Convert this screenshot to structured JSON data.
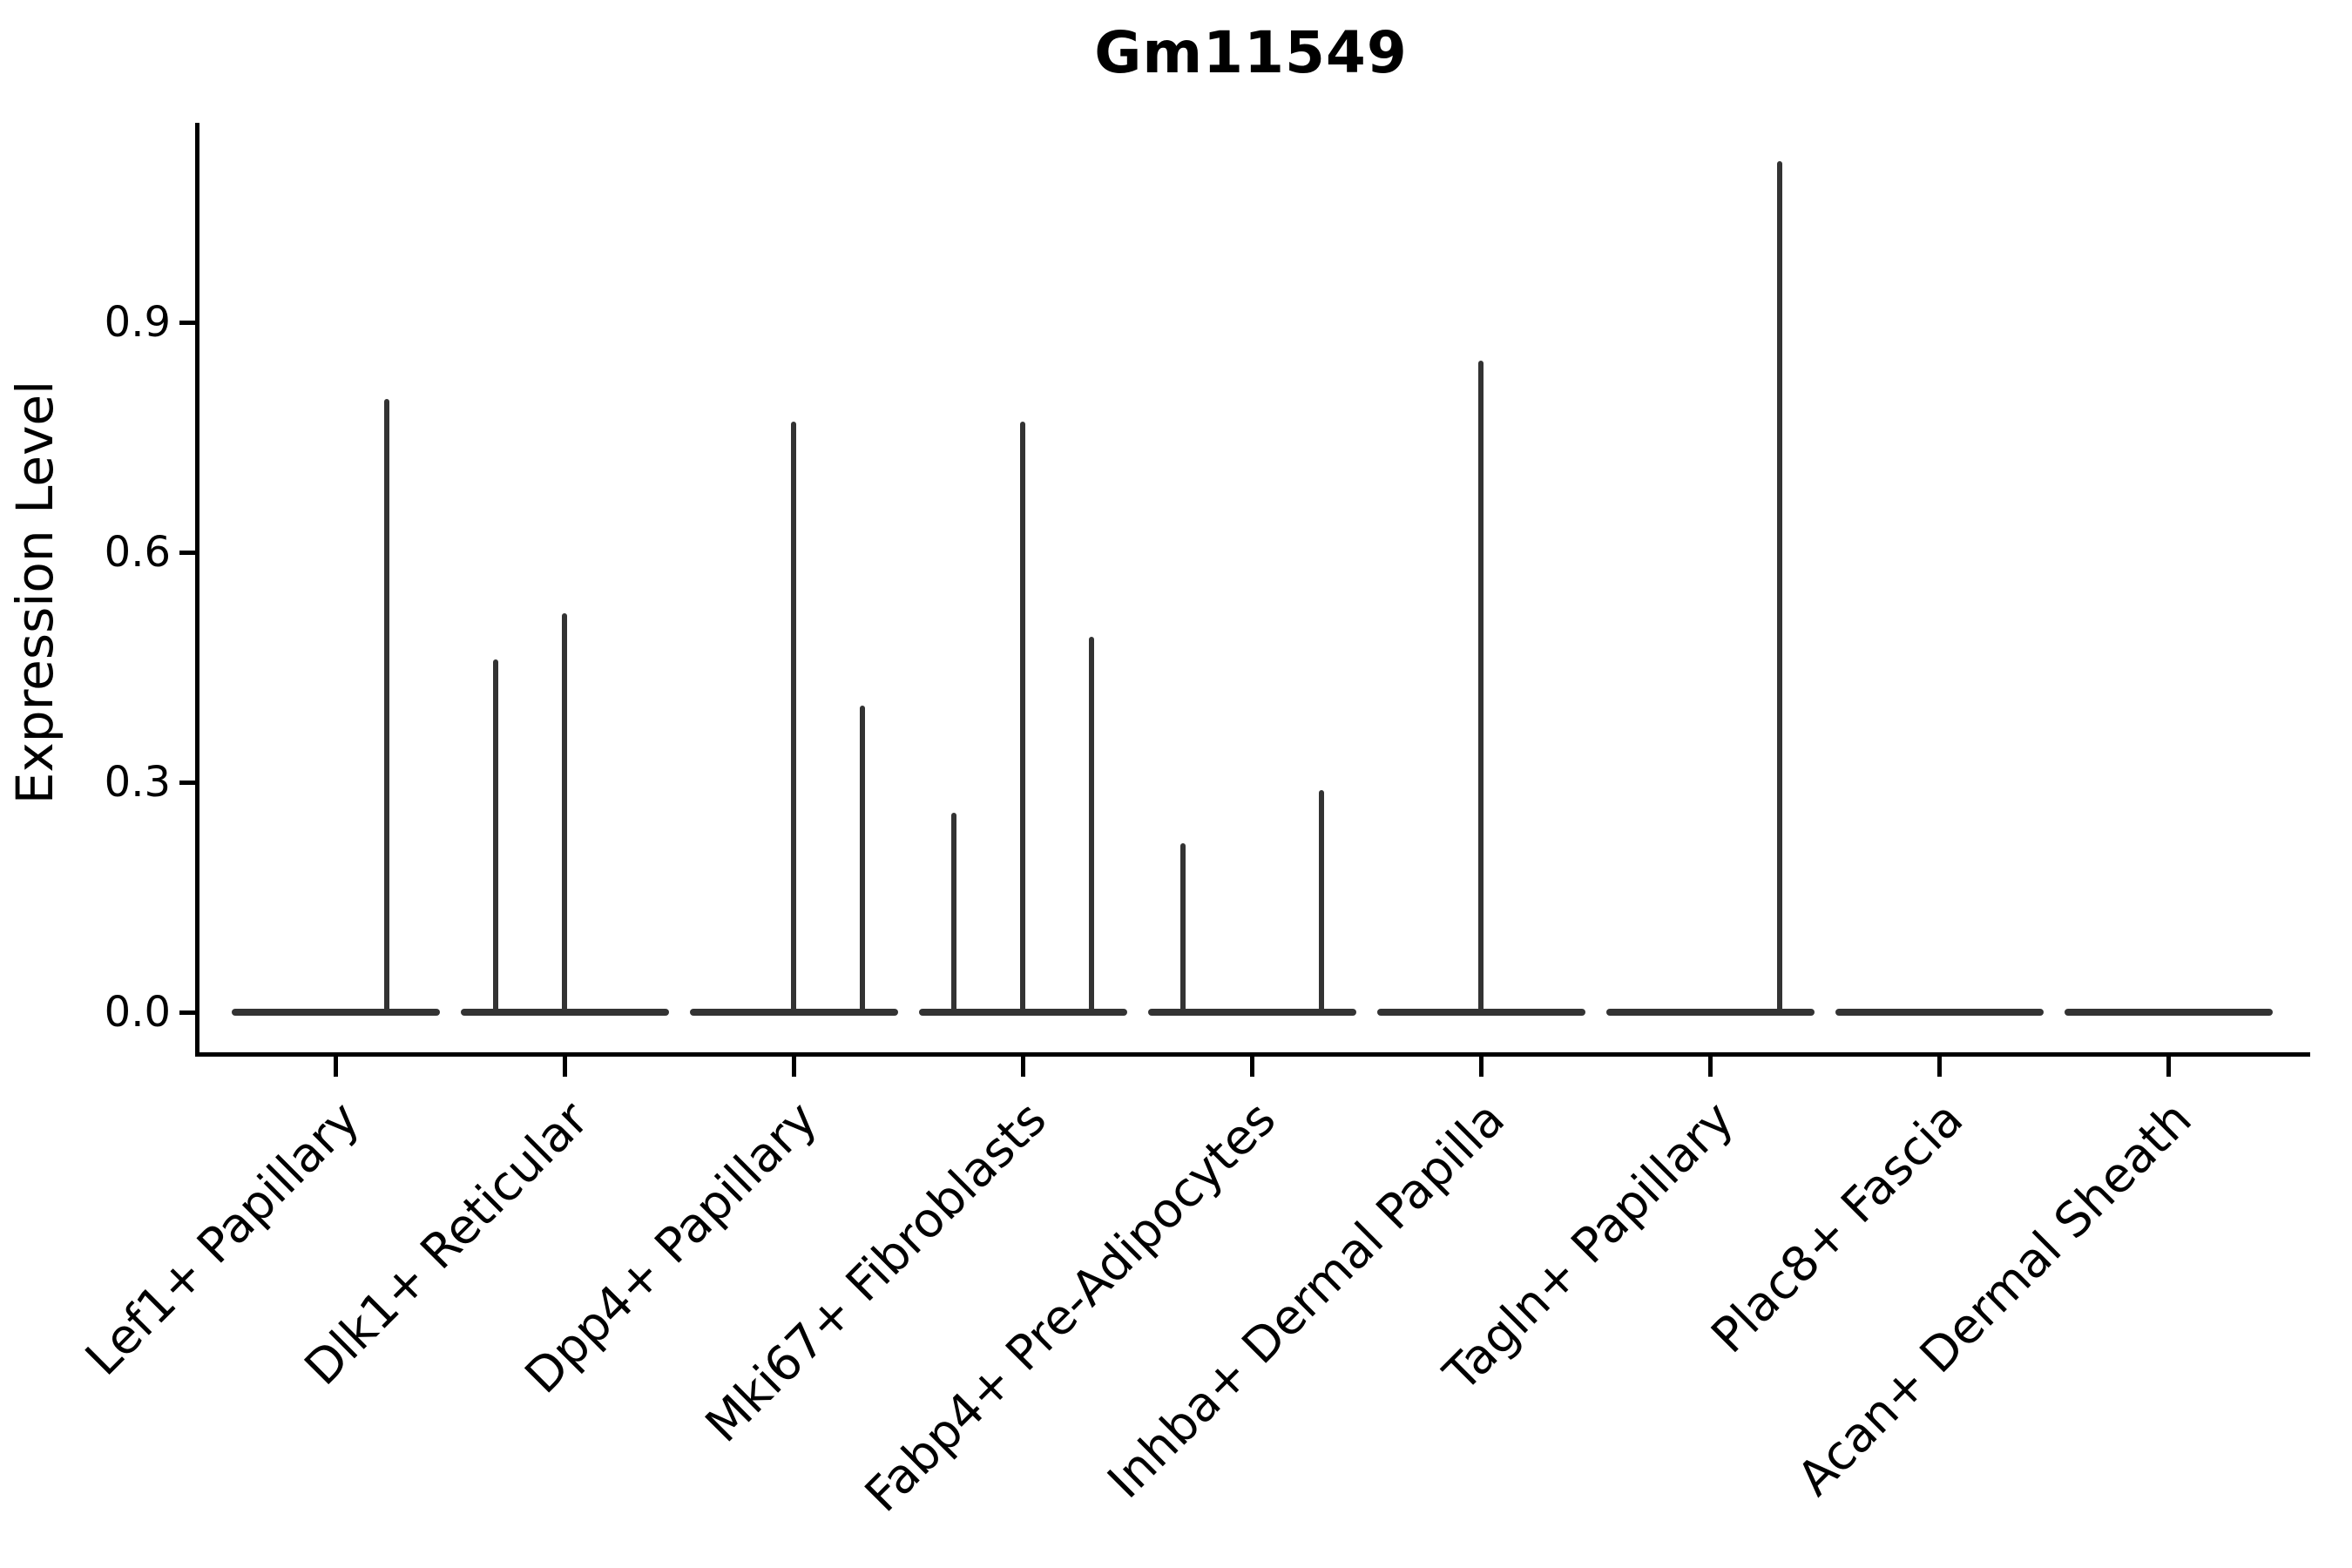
{
  "chart_data": {
    "type": "violin",
    "title": "Gm11549",
    "xlabel": "",
    "ylabel": "Expression Level",
    "y_ticks": [
      0.0,
      0.3,
      0.6,
      0.9
    ],
    "y_tick_labels": [
      "0.0",
      "0.3",
      "0.6",
      "0.9"
    ],
    "ylim": [
      -0.055,
      1.16
    ],
    "grid": false,
    "legend": "none",
    "categories": [
      "Lef1+ Papillary",
      "Dlk1+ Reticular",
      "Dpp4+ Papillary",
      "Mki67+ Fibroblasts",
      "Fabp4+ Pre-Adipocytes",
      "Inhba+ Dermal Papilla",
      "Tagln+ Papillary",
      "Plac8+ Fascia",
      "Acan+ Dermal Sheath"
    ],
    "series": [
      {
        "name": "Lef1+ Papillary",
        "baseline_value": 0.0,
        "spikes": [
          {
            "x_offset": 0.224,
            "value": 0.8
          }
        ]
      },
      {
        "name": "Dlk1+ Reticular",
        "baseline_value": 0.0,
        "spikes": [
          {
            "x_offset": -0.3,
            "value": 0.46
          },
          {
            "x_offset": 0.0,
            "value": 0.52
          }
        ]
      },
      {
        "name": "Dpp4+ Papillary",
        "baseline_value": 0.0,
        "spikes": [
          {
            "x_offset": 0.0,
            "value": 0.77
          },
          {
            "x_offset": 0.3,
            "value": 0.4
          }
        ]
      },
      {
        "name": "Mki67+ Fibroblasts",
        "baseline_value": 0.0,
        "spikes": [
          {
            "x_offset": -0.3,
            "value": 0.26
          },
          {
            "x_offset": 0.0,
            "value": 0.77
          },
          {
            "x_offset": 0.3,
            "value": 0.49
          }
        ]
      },
      {
        "name": "Fabp4+ Pre-Adipocytes",
        "baseline_value": 0.0,
        "spikes": [
          {
            "x_offset": -0.3,
            "value": 0.22
          },
          {
            "x_offset": 0.304,
            "value": 0.29
          }
        ]
      },
      {
        "name": "Inhba+ Dermal Papilla",
        "baseline_value": 0.0,
        "spikes": [
          {
            "x_offset": 0.0,
            "value": 0.85
          }
        ]
      },
      {
        "name": "Tagln+ Papillary",
        "baseline_value": 0.0,
        "spikes": [
          {
            "x_offset": 0.304,
            "value": 1.11
          }
        ]
      },
      {
        "name": "Plac8+ Fascia",
        "baseline_value": 0.0,
        "spikes": []
      },
      {
        "name": "Acan+ Dermal Sheath",
        "baseline_value": 0.0,
        "spikes": []
      }
    ],
    "violin_width_fraction": 0.91,
    "colors": {
      "violin": "#333333",
      "axis": "#000000",
      "text": "#000000",
      "background": "#ffffff"
    }
  }
}
